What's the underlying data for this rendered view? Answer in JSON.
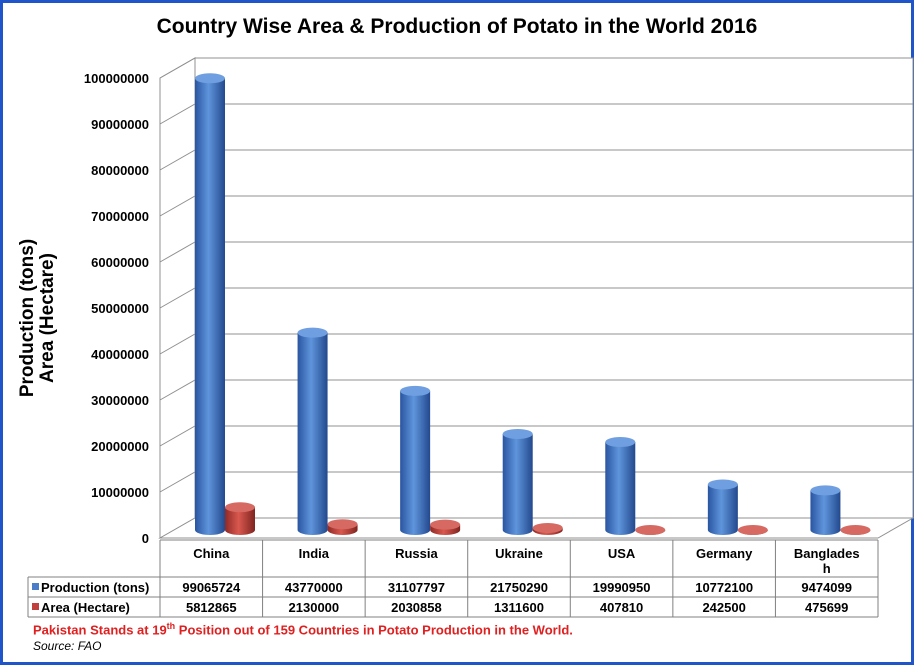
{
  "chart_data": {
    "type": "bar",
    "title": "Country Wise Area & Production of Potato in the World 2016",
    "ylabel_lines": [
      "Production (tons)",
      "Area (Hectare)"
    ],
    "categories": [
      "China",
      "India",
      "Russia",
      "Ukraine",
      "USA",
      "Germany",
      "Bangladesh"
    ],
    "category_display": [
      [
        "China"
      ],
      [
        "India"
      ],
      [
        "Russia"
      ],
      [
        "Ukraine"
      ],
      [
        "USA"
      ],
      [
        "Germany"
      ],
      [
        "Banglades",
        "h"
      ]
    ],
    "series": [
      {
        "name": "Production (tons)",
        "color": "#4a7dc8",
        "values": [
          99065724,
          43770000,
          31107797,
          21750290,
          19990950,
          10772100,
          9474099
        ]
      },
      {
        "name": "Area (Hectare)",
        "color": "#c0403d",
        "values": [
          5812865,
          2130000,
          2030858,
          1311600,
          407810,
          242500,
          475699
        ]
      }
    ],
    "ylim": [
      0,
      100000000
    ],
    "yticks": [
      0,
      10000000,
      20000000,
      30000000,
      40000000,
      50000000,
      60000000,
      70000000,
      80000000,
      90000000,
      100000000
    ],
    "grid": true,
    "legend": "data-table",
    "chart_style": "3d-cylinder"
  },
  "footnote": {
    "prefix": "Pakistan Stands at 19",
    "superscript": "th",
    "suffix": " Position out of 159 Countries in Potato Production in the World."
  },
  "source": "Source: FAO"
}
